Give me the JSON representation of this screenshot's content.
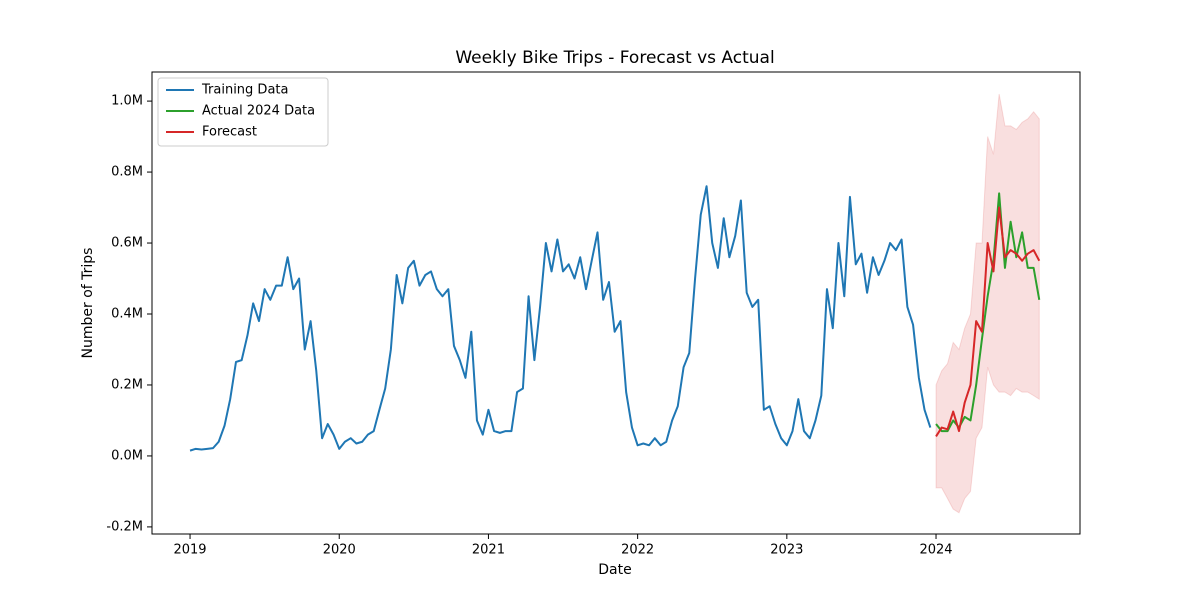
{
  "chart_data": {
    "type": "line",
    "title": "Weekly Bike Trips - Forecast vs Actual",
    "x_label": "Date",
    "y_label": "Number of Trips",
    "xlim": [
      2018.745,
      2024.965
    ],
    "xticks": [
      2019,
      2020,
      2021,
      2022,
      2023,
      2024
    ],
    "ylim": [
      -220000,
      1082000
    ],
    "yticks": [
      {
        "value": -200000,
        "label": "-0.2M"
      },
      {
        "value": 0,
        "label": "0.0M"
      },
      {
        "value": 200000,
        "label": "0.2M"
      },
      {
        "value": 400000,
        "label": "0.4M"
      },
      {
        "value": 600000,
        "label": "0.6M"
      },
      {
        "value": 800000,
        "label": "0.8M"
      },
      {
        "value": 1000000,
        "label": "1.0M"
      }
    ],
    "grid": false,
    "legend": "upper left",
    "series": [
      {
        "name": "Training Data",
        "color": "#1f77b4",
        "x": [
          2019,
          2019.038,
          2019.077,
          2019.115,
          2019.154,
          2019.192,
          2019.231,
          2019.269,
          2019.308,
          2019.346,
          2019.385,
          2019.423,
          2019.462,
          2019.5,
          2019.538,
          2019.577,
          2019.615,
          2019.654,
          2019.692,
          2019.731,
          2019.769,
          2019.808,
          2019.846,
          2019.885,
          2019.923,
          2019.962,
          2020,
          2020.038,
          2020.077,
          2020.115,
          2020.154,
          2020.192,
          2020.231,
          2020.269,
          2020.308,
          2020.346,
          2020.385,
          2020.423,
          2020.462,
          2020.5,
          2020.538,
          2020.577,
          2020.615,
          2020.654,
          2020.692,
          2020.731,
          2020.769,
          2020.808,
          2020.846,
          2020.885,
          2020.923,
          2020.962,
          2021,
          2021.038,
          2021.077,
          2021.115,
          2021.154,
          2021.192,
          2021.231,
          2021.269,
          2021.308,
          2021.346,
          2021.385,
          2021.423,
          2021.462,
          2021.5,
          2021.538,
          2021.577,
          2021.615,
          2021.654,
          2021.692,
          2021.731,
          2021.769,
          2021.808,
          2021.846,
          2021.885,
          2021.923,
          2021.962,
          2022,
          2022.038,
          2022.077,
          2022.115,
          2022.154,
          2022.192,
          2022.231,
          2022.269,
          2022.308,
          2022.346,
          2022.385,
          2022.423,
          2022.462,
          2022.5,
          2022.538,
          2022.577,
          2022.615,
          2022.654,
          2022.692,
          2022.731,
          2022.769,
          2022.808,
          2022.846,
          2022.885,
          2022.923,
          2022.962,
          2023,
          2023.038,
          2023.077,
          2023.115,
          2023.154,
          2023.192,
          2023.231,
          2023.269,
          2023.308,
          2023.346,
          2023.385,
          2023.423,
          2023.462,
          2023.5,
          2023.538,
          2023.577,
          2023.615,
          2023.654,
          2023.692,
          2023.731,
          2023.769,
          2023.808,
          2023.846,
          2023.885,
          2023.923,
          2023.962
        ],
        "values": [
          15000,
          20000,
          18000,
          20000,
          22000,
          40000,
          85000,
          160000,
          265000,
          270000,
          340000,
          430000,
          380000,
          470000,
          440000,
          480000,
          480000,
          560000,
          470000,
          500000,
          300000,
          380000,
          240000,
          50000,
          90000,
          60000,
          20000,
          40000,
          50000,
          35000,
          40000,
          60000,
          70000,
          130000,
          190000,
          300000,
          510000,
          430000,
          530000,
          550000,
          480000,
          510000,
          520000,
          470000,
          450000,
          470000,
          310000,
          270000,
          220000,
          350000,
          100000,
          60000,
          130000,
          70000,
          65000,
          70000,
          70000,
          180000,
          190000,
          450000,
          270000,
          420000,
          600000,
          520000,
          610000,
          520000,
          540000,
          500000,
          560000,
          470000,
          550000,
          630000,
          440000,
          490000,
          350000,
          380000,
          180000,
          80000,
          30000,
          35000,
          30000,
          50000,
          30000,
          40000,
          100000,
          140000,
          250000,
          290000,
          500000,
          680000,
          760000,
          600000,
          530000,
          670000,
          560000,
          620000,
          720000,
          460000,
          420000,
          440000,
          130000,
          140000,
          90000,
          50000,
          30000,
          70000,
          160000,
          70000,
          50000,
          100000,
          170000,
          470000,
          360000,
          600000,
          450000,
          730000,
          540000,
          570000,
          460000,
          560000,
          510000,
          550000,
          600000,
          580000,
          610000,
          420000,
          370000,
          220000,
          130000,
          80000
        ]
      },
      {
        "name": "Actual 2024 Data",
        "color": "#2ca02c",
        "x": [
          2024,
          2024.038,
          2024.077,
          2024.115,
          2024.154,
          2024.192,
          2024.231,
          2024.269,
          2024.308,
          2024.346,
          2024.385,
          2024.423,
          2024.462,
          2024.5,
          2024.538,
          2024.577,
          2024.615,
          2024.654,
          2024.692
        ],
        "values": [
          90000,
          70000,
          70000,
          100000,
          80000,
          110000,
          100000,
          200000,
          330000,
          450000,
          550000,
          740000,
          530000,
          660000,
          560000,
          630000,
          530000,
          530000,
          440000
        ]
      },
      {
        "name": "Forecast",
        "color": "#d62728",
        "x": [
          2024,
          2024.038,
          2024.077,
          2024.115,
          2024.154,
          2024.192,
          2024.231,
          2024.269,
          2024.308,
          2024.346,
          2024.385,
          2024.423,
          2024.462,
          2024.5,
          2024.538,
          2024.577,
          2024.615,
          2024.654,
          2024.692
        ],
        "values": [
          55000,
          80000,
          75000,
          125000,
          70000,
          150000,
          200000,
          380000,
          350000,
          600000,
          520000,
          700000,
          560000,
          580000,
          570000,
          550000,
          570000,
          580000,
          550000
        ]
      }
    ],
    "interval": {
      "color": "#d62728",
      "lower": [
        -90000,
        -90000,
        -120000,
        -150000,
        -160000,
        -120000,
        -100000,
        50000,
        80000,
        250000,
        200000,
        180000,
        180000,
        170000,
        190000,
        180000,
        180000,
        170000,
        160000
      ],
      "upper": [
        200000,
        240000,
        260000,
        320000,
        300000,
        360000,
        400000,
        600000,
        600000,
        900000,
        850000,
        1020000,
        930000,
        930000,
        920000,
        940000,
        950000,
        970000,
        950000
      ]
    }
  }
}
